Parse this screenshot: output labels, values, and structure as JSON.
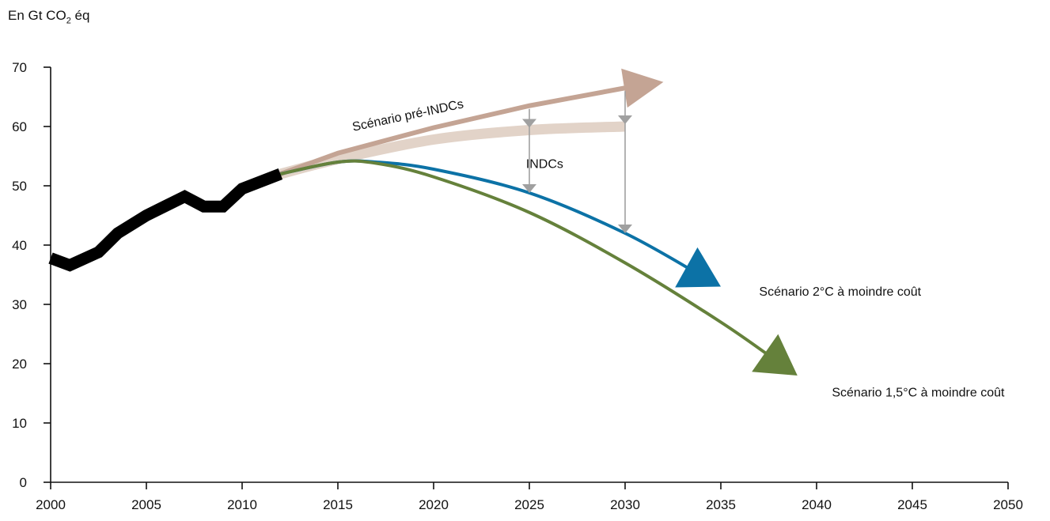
{
  "chart_data": {
    "type": "line",
    "title": "",
    "ylabel": {
      "prefix": "En Gt CO",
      "sub": "2",
      "suffix": " éq"
    },
    "xlabel": "",
    "xlim": [
      2000,
      2050
    ],
    "ylim": [
      0,
      70
    ],
    "x_ticks": [
      2000,
      2005,
      2010,
      2015,
      2020,
      2025,
      2030,
      2035,
      2040,
      2045,
      2050
    ],
    "y_ticks": [
      0,
      10,
      20,
      30,
      40,
      50,
      60,
      70
    ],
    "grid": false,
    "legend": "none",
    "series": [
      {
        "id": "historique",
        "color": "#000000",
        "x": [
          2000,
          2001,
          2002.5,
          2003.5,
          2005,
          2007,
          2008,
          2009,
          2010,
          2012
        ],
        "y": [
          37.8,
          36.6,
          38.8,
          42.0,
          45.0,
          48.2,
          46.5,
          46.5,
          49.5,
          52.0
        ]
      },
      {
        "id": "pre-indcs",
        "color": "#c4a494",
        "x": [
          2012,
          2015,
          2020,
          2025,
          2030,
          2032
        ],
        "y": [
          52.0,
          55.5,
          59.8,
          63.5,
          66.5,
          67.5
        ]
      },
      {
        "id": "indcs",
        "color": "#e2d3c8",
        "x": [
          2012,
          2015,
          2020,
          2025,
          2030
        ],
        "y": [
          52.0,
          54.5,
          57.8,
          59.4,
          60.0
        ]
      },
      {
        "id": "2c",
        "color": "#0c72a6",
        "x": [
          2012,
          2015,
          2017,
          2020,
          2025,
          2030,
          2035
        ],
        "y": [
          52.0,
          54.0,
          54.0,
          52.8,
          48.8,
          42.0,
          33.0
        ]
      },
      {
        "id": "1-5c",
        "color": "#65813b",
        "x": [
          2012,
          2015,
          2017,
          2020,
          2025,
          2030,
          2035,
          2039
        ],
        "y": [
          52.0,
          54.0,
          53.8,
          51.5,
          45.5,
          37.0,
          27.0,
          18.0
        ]
      }
    ],
    "annotations": [
      {
        "id": "pre-indcs-label",
        "text": "Scénario pré-INDCs",
        "x": 2018.7,
        "y": 61.2,
        "rotate": -12
      },
      {
        "id": "indcs-label",
        "text": "INDCs",
        "x": 2025.8,
        "y": 53.0,
        "rotate": 0
      },
      {
        "id": "2c-label",
        "text": "Scénario 2°C à moindre coût",
        "x": 2037.0,
        "y": 31.5,
        "rotate": 0
      },
      {
        "id": "1-5c-label",
        "text": "Scénario 1,5°C à moindre coût",
        "x": 2040.8,
        "y": 14.5,
        "rotate": 0
      }
    ],
    "gap_arrows": [
      {
        "x": 2025,
        "from": 63.5,
        "to": 48.8
      },
      {
        "x": 2030,
        "from": 66.5,
        "to": 42.0
      }
    ],
    "arrow_color": "#a0a0a0"
  }
}
